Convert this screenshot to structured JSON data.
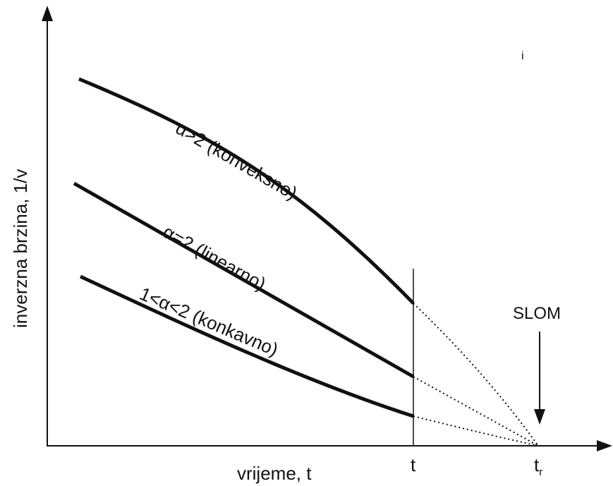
{
  "axes": {
    "x_label": "vrijeme, t",
    "y_label": "inverzna brzina, 1/v",
    "x_ticks": [
      {
        "id": "t",
        "main": "t",
        "sub": ""
      },
      {
        "id": "tr",
        "main": "t",
        "sub": "r"
      }
    ]
  },
  "curves": [
    {
      "id": "convex",
      "label": "α>2 (konveksno)"
    },
    {
      "id": "linear",
      "label": "α=2 (linearno)"
    },
    {
      "id": "concave",
      "label": "1<α<2 (konkavno)"
    }
  ],
  "failure": {
    "label": "SLOM"
  },
  "stray_mark": "i",
  "colors": {
    "ink": "#111111",
    "background": "#ffffff"
  }
}
